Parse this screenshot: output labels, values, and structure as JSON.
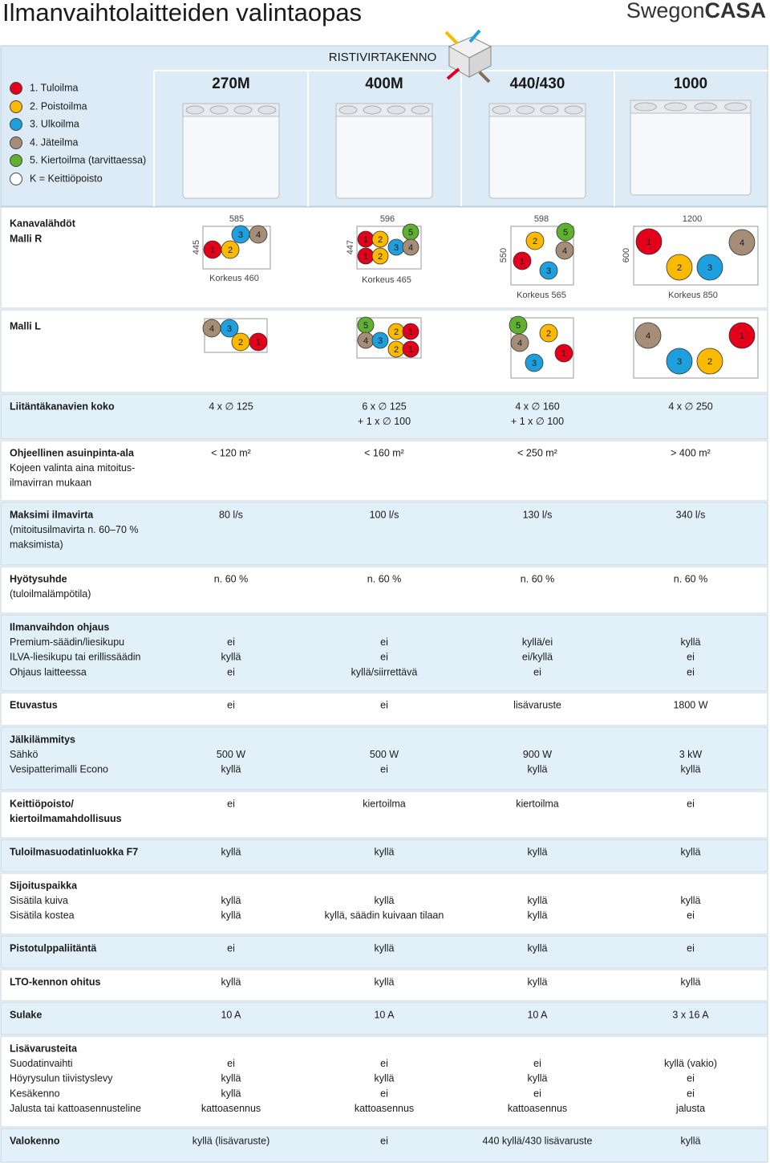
{
  "header": {
    "title": "Ilmanvaihtolaitteiden valintaopas",
    "logo": [
      "Swegon",
      "CASA"
    ]
  },
  "legend": [
    {
      "label": "1. Tuloilma",
      "color": "#e2001a"
    },
    {
      "label": "2. Poistoilma",
      "color": "#fbb900"
    },
    {
      "label": "3. Ulkoilma",
      "color": "#1fa0de"
    },
    {
      "label": "4. Jäteilma",
      "color": "#a58d78"
    },
    {
      "label": "5. Kiertoilma (tarvittaessa)",
      "color": "#5fb030"
    },
    {
      "label": "K = Keittiöpoisto",
      "color": "#ffffff"
    }
  ],
  "group": "RISTIVIRTAKENNO",
  "ducts": {
    "r_label": [
      "Kanavalähdöt",
      "Malli R"
    ],
    "l_label": [
      "Malli L"
    ]
  },
  "models": [
    {
      "name": "270M",
      "r": {
        "width": "585",
        "depth": "445",
        "height": "Korkeus 460",
        "ports": [
          "3",
          "4",
          "1",
          "2"
        ]
      },
      "l": {
        "ports": [
          "4",
          "3",
          "2",
          "1"
        ]
      }
    },
    {
      "name": "400M",
      "r": {
        "width": "596",
        "depth": "447",
        "height": "Korkeus 465",
        "ports": [
          "1",
          "2",
          "5",
          "3",
          "4",
          "1",
          "2"
        ]
      },
      "l": {
        "ports": [
          "5",
          "4",
          "3",
          "2",
          "1",
          "2",
          "1"
        ]
      }
    },
    {
      "name": "440/430",
      "r": {
        "width": "598",
        "depth": "550",
        "height": "Korkeus 565",
        "ports": [
          "5",
          "2",
          "4",
          "1",
          "3"
        ]
      },
      "l": {
        "ports": [
          "5",
          "4",
          "2",
          "1",
          "3"
        ]
      }
    },
    {
      "name": "1000",
      "r": {
        "width": "1200",
        "depth": "600",
        "height": "Korkeus 850",
        "ports": [
          "1",
          "4",
          "2",
          "3"
        ]
      },
      "l": {
        "ports": [
          "4",
          "1",
          "3",
          "2"
        ]
      }
    }
  ],
  "rows": [
    {
      "title": [
        "Liitäntäkanavien koko"
      ],
      "sub": [],
      "cells": [
        [
          "4 x ∅ 125"
        ],
        [
          "6 x ∅ 125",
          "+ 1 x ∅ 100"
        ],
        [
          "4 x ∅ 160",
          "+ 1 x ∅ 100"
        ],
        [
          "4 x ∅ 250"
        ]
      ]
    },
    {
      "title": [
        "Ohjeellinen asuinpinta-ala"
      ],
      "sub": [
        "Kojeen valinta aina mitoitus-",
        "ilmavirran mukaan"
      ],
      "cells": [
        [
          "< 120 m²"
        ],
        [
          "< 160 m²"
        ],
        [
          "< 250 m²"
        ],
        [
          "> 400 m²"
        ]
      ]
    },
    {
      "title": [
        "Maksimi ilmavirta"
      ],
      "sub": [
        "(mitoitusilmavirta n. 60–70 %",
        "maksimista)"
      ],
      "cells": [
        [
          "80 l/s"
        ],
        [
          "100 l/s"
        ],
        [
          "130 l/s"
        ],
        [
          "340 l/s"
        ]
      ]
    },
    {
      "title": [
        "Hyötysuhde"
      ],
      "sub": [
        "(tuloilmalämpötila)"
      ],
      "cells": [
        [
          "n. 60 %"
        ],
        [
          "n. 60 %"
        ],
        [
          "n. 60 %"
        ],
        [
          "n. 60 %"
        ]
      ]
    },
    {
      "title": [
        "Ilmanvaihdon ohjaus"
      ],
      "sub": [
        "Premium-säädin/liesikupu",
        "ILVA-liesikupu tai erillissäädin",
        "Ohjaus laitteessa"
      ],
      "cells": [
        [
          "ei",
          "kyllä",
          "ei"
        ],
        [
          "ei",
          "ei",
          "kyllä/siirrettävä"
        ],
        [
          "kyllä/ei",
          "ei/kyllä",
          "ei"
        ],
        [
          "kyllä",
          "ei",
          "ei"
        ]
      ]
    },
    {
      "title": [
        "Etuvastus"
      ],
      "sub": [],
      "cells": [
        [
          "ei"
        ],
        [
          "ei"
        ],
        [
          "lisävaruste"
        ],
        [
          "1800 W"
        ]
      ]
    },
    {
      "title": [
        "Jälkilämmitys"
      ],
      "sub": [
        "Sähkö",
        "Vesipatterimalli Econo"
      ],
      "cells": [
        [
          "500 W",
          "kyllä"
        ],
        [
          "500 W",
          "ei"
        ],
        [
          "900 W",
          "kyllä"
        ],
        [
          "3 kW",
          "kyllä"
        ]
      ]
    },
    {
      "title": [
        "Keittiöpoisto/",
        "kiertoilmamahdollisuus"
      ],
      "sub": [],
      "cells": [
        [
          "ei"
        ],
        [
          "kiertoilma"
        ],
        [
          "kiertoilma"
        ],
        [
          "ei"
        ]
      ]
    },
    {
      "title": [
        "Tuloilmasuodatinluokka F7"
      ],
      "sub": [],
      "cells": [
        [
          "kyllä"
        ],
        [
          "kyllä"
        ],
        [
          "kyllä"
        ],
        [
          "kyllä"
        ]
      ]
    },
    {
      "title": [
        "Sijoituspaikka"
      ],
      "sub": [
        "Sisätila kuiva",
        "Sisätila kostea"
      ],
      "cells": [
        [
          "kyllä",
          "kyllä"
        ],
        [
          "kyllä",
          "kyllä, säädin kuivaan tilaan"
        ],
        [
          "kyllä",
          "kyllä"
        ],
        [
          "kyllä",
          "ei"
        ]
      ]
    },
    {
      "title": [
        "Pistotulppaliitäntä"
      ],
      "sub": [],
      "cells": [
        [
          "ei"
        ],
        [
          "kyllä"
        ],
        [
          "kyllä"
        ],
        [
          "ei"
        ]
      ]
    },
    {
      "title": [
        "LTO-kennon ohitus"
      ],
      "sub": [],
      "cells": [
        [
          "kyllä"
        ],
        [
          "kyllä"
        ],
        [
          "kyllä"
        ],
        [
          "kyllä"
        ]
      ]
    },
    {
      "title": [
        "Sulake"
      ],
      "sub": [],
      "cells": [
        [
          "10 A"
        ],
        [
          "10 A"
        ],
        [
          "10 A"
        ],
        [
          "3 x 16 A"
        ]
      ]
    },
    {
      "title": [
        "Lisävarusteita"
      ],
      "sub": [
        "Suodatinvaihti",
        "Höyrysulun tiivistyslevy",
        "Kesäkenno",
        "Jalusta tai kattoasennusteline"
      ],
      "cells": [
        [
          "ei",
          "kyllä",
          "kyllä",
          "kattoasennus"
        ],
        [
          "ei",
          "kyllä",
          "ei",
          "kattoasennus"
        ],
        [
          "ei",
          "kyllä",
          "ei",
          "kattoasennus"
        ],
        [
          "kyllä (vakio)",
          "ei",
          "ei",
          "jalusta"
        ]
      ]
    },
    {
      "title": [
        "Valokenno"
      ],
      "sub": [],
      "cells": [
        [
          "kyllä (lisävaruste)"
        ],
        [
          "ei"
        ],
        [
          "440 kyllä/430 lisävaruste"
        ],
        [
          "kyllä"
        ]
      ]
    }
  ]
}
